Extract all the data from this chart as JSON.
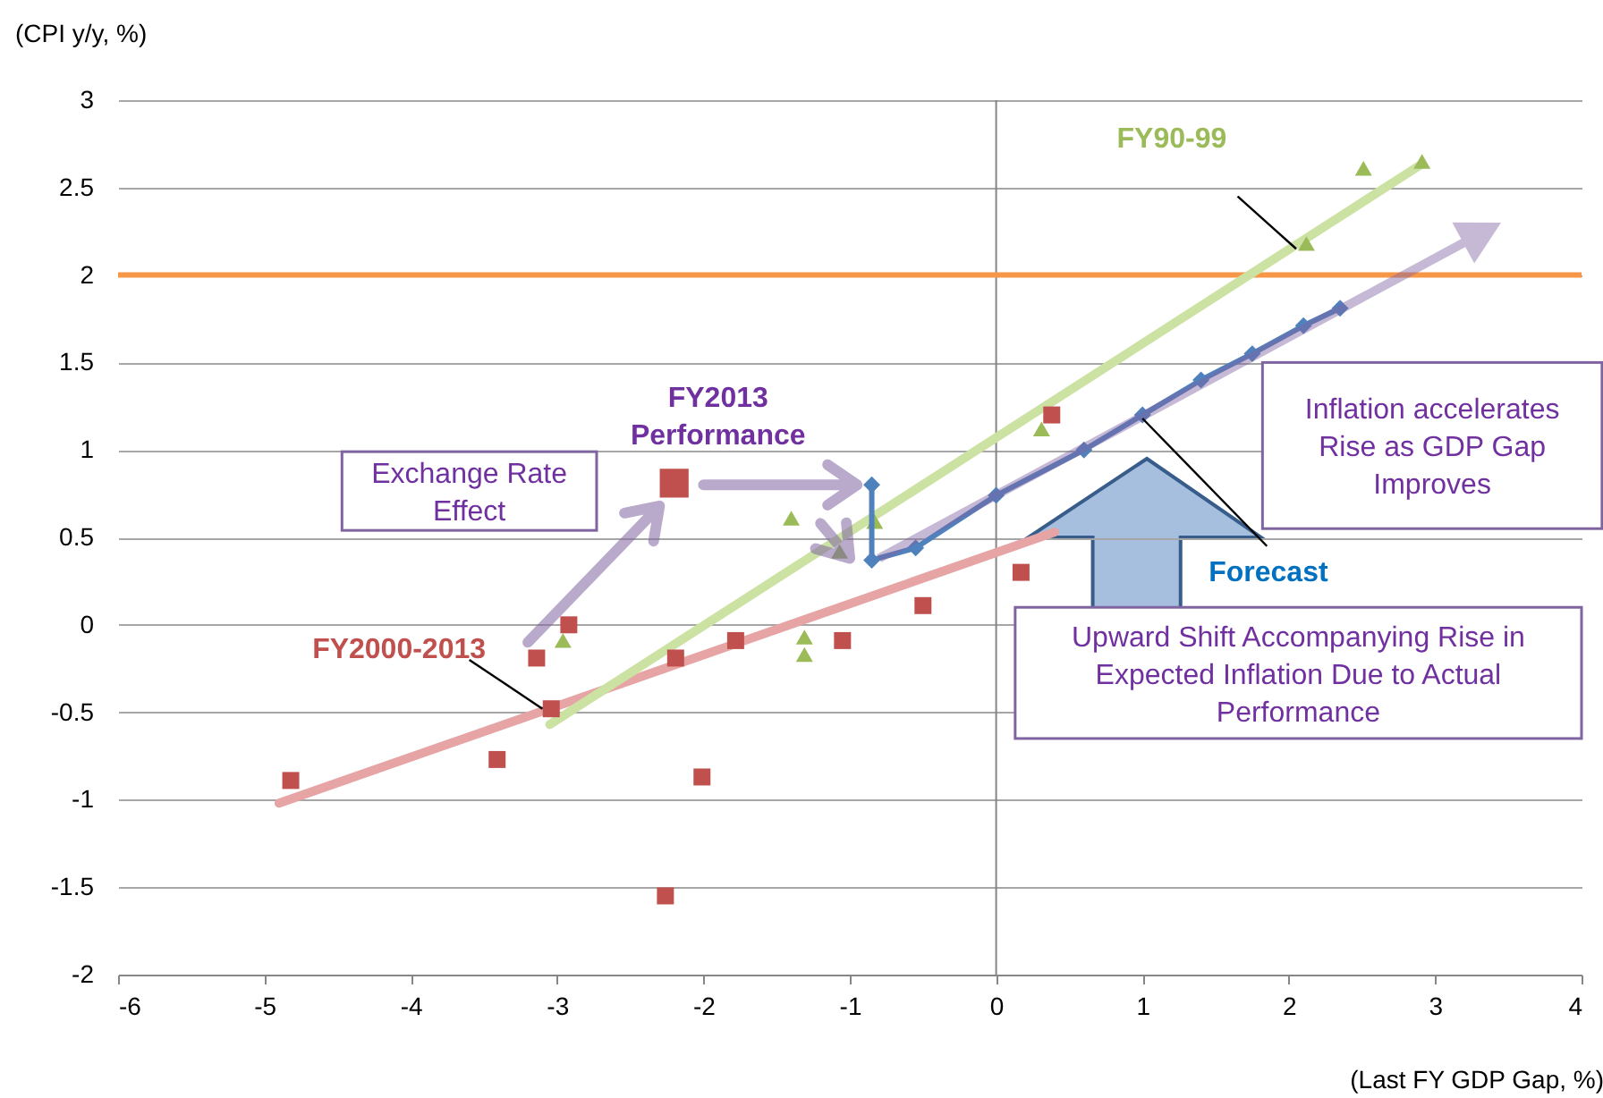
{
  "chart_data": {
    "type": "scatter",
    "xlabel": "(Last FY GDP Gap, %)",
    "ylabel": "(CPI y/y, %)",
    "xlim": [
      -6,
      4
    ],
    "xticks": [
      -6,
      -5,
      -4,
      -3,
      -2,
      -1,
      0,
      1,
      2,
      3,
      4
    ],
    "ylim": [
      -2,
      3
    ],
    "yticks": [
      -2,
      -1.5,
      -1,
      -0.5,
      0,
      0.5,
      1,
      1.5,
      2,
      2.5,
      3
    ],
    "grid": "y",
    "series": [
      {
        "type": "line",
        "color": "#e6a5a4",
        "marker": "none",
        "x": [
          -4.9,
          0.4
        ],
        "values": [
          -1.02,
          0.53
        ]
      },
      {
        "type": "line",
        "color": "#cbe2a3",
        "marker": "none",
        "x": [
          -3.05,
          2.9
        ],
        "values": [
          -0.57,
          2.63
        ]
      },
      {
        "type": "scatter",
        "name": "FY2000-2013",
        "color": "#c0504d",
        "marker": "square",
        "x": [
          -4.82,
          -3.41,
          -3.14,
          -2.92,
          -3.04,
          -2.19,
          -1.78,
          -2.01,
          -2.26,
          -1.05,
          -0.5,
          0.17,
          0.38
        ],
        "values": [
          -0.89,
          -0.77,
          -0.19,
          0.0,
          -0.48,
          -0.19,
          -0.09,
          -0.87,
          -1.55,
          -0.09,
          0.11,
          0.3,
          1.2
        ]
      },
      {
        "type": "scatter",
        "name": "FY2013 Performance",
        "color": "#c0504d",
        "marker": "square",
        "x": [
          -2.2
        ],
        "values": [
          0.81
        ]
      },
      {
        "type": "scatter",
        "name": "FY90-99",
        "color": "#9bbb59",
        "marker": "triangle",
        "x": [
          -2.96,
          -1.4,
          -1.31,
          -1.31,
          -1.07,
          -0.83,
          0.31,
          2.12,
          2.51,
          2.91
        ],
        "values": [
          -0.09,
          0.61,
          -0.07,
          -0.17,
          0.42,
          0.59,
          1.12,
          2.18,
          2.61,
          2.65
        ]
      },
      {
        "type": "line",
        "name": "Forecast",
        "color": "#4f81bd",
        "marker": "diamond",
        "x": [
          -0.85,
          -0.85,
          -0.55,
          0,
          0.6,
          1.0,
          1.4,
          1.75,
          2.1,
          2.35
        ],
        "values": [
          0.8,
          0.37,
          0.44,
          0.74,
          1.0,
          1.2,
          1.4,
          1.55,
          1.71,
          1.81
        ]
      }
    ],
    "ref_lines": [
      {
        "axis": "x",
        "value": 0,
        "color": "#868686"
      },
      {
        "axis": "y",
        "value": 2,
        "color": "#f79646"
      }
    ],
    "annotations": [
      "Exchange Rate Effect",
      "Inflation accelerates Rise as GDP Gap Improves",
      "Upward Shift Accompanying Rise in Expected Inflation Due to Actual Performance"
    ]
  }
}
